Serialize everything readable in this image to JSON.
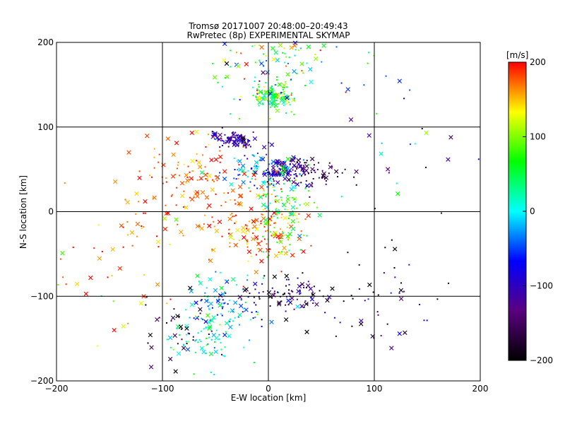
{
  "chart_data": {
    "type": "scatter",
    "title": "Tromsø 20171007 20:48:00–20:49:43",
    "subtitle": "RwPretec (8p) EXPERIMENTAL SKYMAP",
    "xlabel": "E-W location [km]",
    "ylabel": "N-S location [km]",
    "xlim": [
      -200,
      200
    ],
    "ylim": [
      -200,
      200
    ],
    "xticks": [
      "−200",
      "−100",
      "0",
      "100",
      "200"
    ],
    "yticks": [
      "−200",
      "−100",
      "0",
      "100",
      "200"
    ],
    "grid": true,
    "colorbar": {
      "title": "[m/s]",
      "range": [
        -200,
        200
      ],
      "ticks": [
        "200",
        "100",
        "0",
        "−100",
        "−200"
      ],
      "colormap": [
        "#000000",
        "#5a0080",
        "#0000ff",
        "#00ffff",
        "#00ff00",
        "#ffff00",
        "#ff0000"
      ]
    },
    "clusters": [
      {
        "x": 5,
        "y": 135,
        "sx": 10,
        "sy": 8,
        "v": 60,
        "sv": 45,
        "n": 120
      },
      {
        "x": -10,
        "y": 160,
        "sx": 25,
        "sy": 25,
        "v": 40,
        "sv": 90,
        "n": 60
      },
      {
        "x": 15,
        "y": 180,
        "sx": 40,
        "sy": 15,
        "v": 60,
        "sv": 80,
        "n": 50
      },
      {
        "x": -30,
        "y": 85,
        "sx": 12,
        "sy": 5,
        "v": -110,
        "sv": 30,
        "n": 90
      },
      {
        "x": 15,
        "y": 50,
        "sx": 12,
        "sy": 8,
        "v": -110,
        "sv": 30,
        "n": 110
      },
      {
        "x": -15,
        "y": 50,
        "sx": 18,
        "sy": 10,
        "v": -40,
        "sv": 40,
        "n": 80
      },
      {
        "x": 45,
        "y": 45,
        "sx": 18,
        "sy": 12,
        "v": -170,
        "sv": 30,
        "n": 60
      },
      {
        "x": -70,
        "y": 45,
        "sx": 20,
        "sy": 25,
        "v": 170,
        "sv": 25,
        "n": 90
      },
      {
        "x": -15,
        "y": -15,
        "sx": 25,
        "sy": 25,
        "v": 175,
        "sv": 25,
        "n": 170
      },
      {
        "x": 15,
        "y": 5,
        "sx": 12,
        "sy": 25,
        "v": 60,
        "sv": 40,
        "n": 110
      },
      {
        "x": -40,
        "y": -110,
        "sx": 15,
        "sy": 15,
        "v": -20,
        "sv": 40,
        "n": 90
      },
      {
        "x": -60,
        "y": -150,
        "sx": 18,
        "sy": 18,
        "v": 10,
        "sv": 40,
        "n": 70
      },
      {
        "x": 20,
        "y": -100,
        "sx": 20,
        "sy": 10,
        "v": -150,
        "sv": 50,
        "n": 90
      },
      {
        "x": -120,
        "y": -20,
        "sx": 30,
        "sy": 40,
        "v": 175,
        "sv": 25,
        "n": 50
      },
      {
        "x": -90,
        "y": -140,
        "sx": 20,
        "sy": 25,
        "v": -170,
        "sv": 40,
        "n": 35
      },
      {
        "x": 100,
        "y": -110,
        "sx": 25,
        "sy": 25,
        "v": -150,
        "sv": 60,
        "n": 35
      },
      {
        "x": 110,
        "y": 80,
        "sx": 40,
        "sy": 30,
        "v": -60,
        "sv": 130,
        "n": 22
      },
      {
        "x": -150,
        "y": -70,
        "sx": 35,
        "sy": 40,
        "v": 140,
        "sv": 60,
        "n": 25
      },
      {
        "x": 130,
        "y": -60,
        "sx": 40,
        "sy": 40,
        "v": -170,
        "sv": 40,
        "n": 14
      }
    ]
  }
}
